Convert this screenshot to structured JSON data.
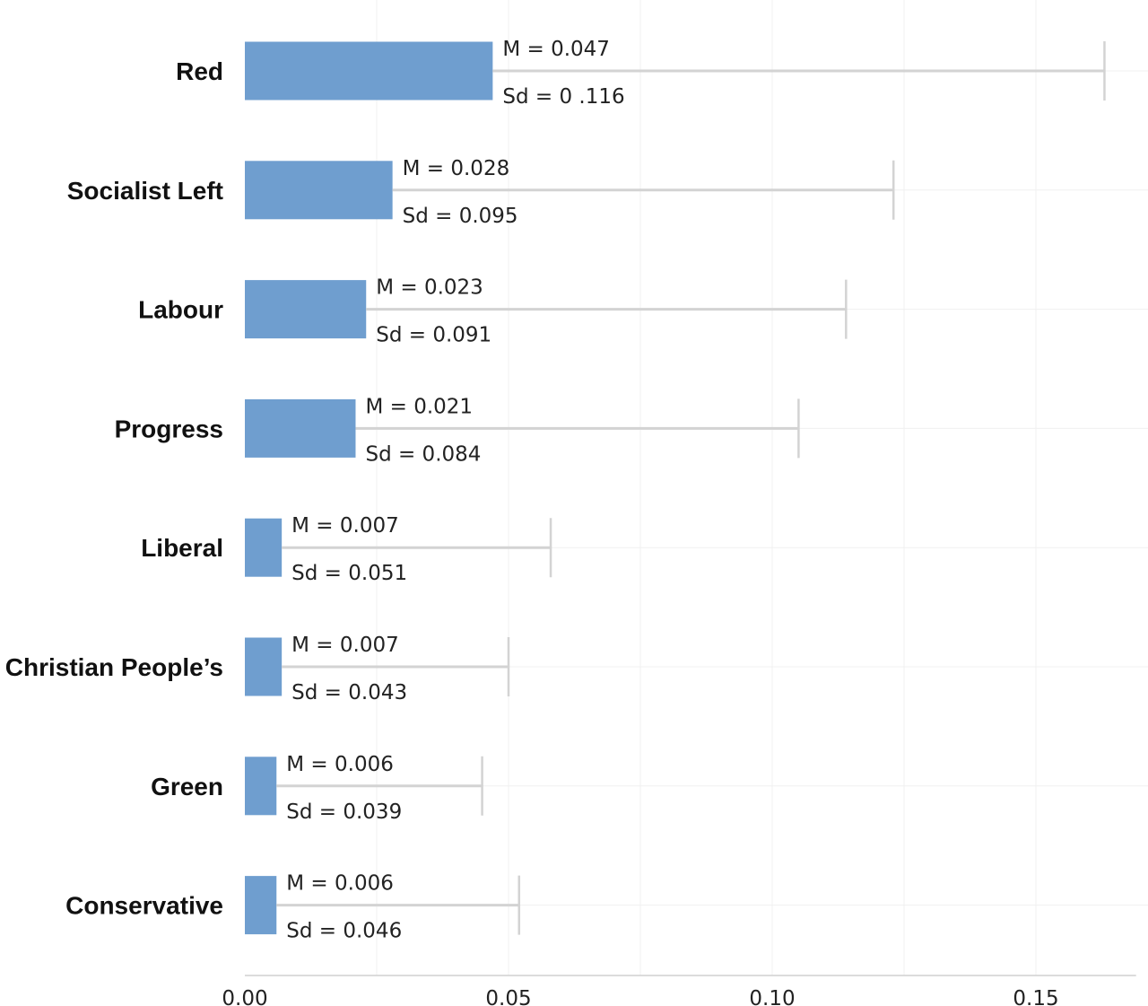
{
  "chart_data": {
    "type": "bar",
    "orientation": "horizontal",
    "categories": [
      "Red",
      "Socialist Left",
      "Labour",
      "Progress",
      "Liberal",
      "Christian People’s",
      "Green",
      "Conservative"
    ],
    "series": [
      {
        "values": [
          0.047,
          0.028,
          0.023,
          0.021,
          0.007,
          0.007,
          0.006,
          0.006
        ],
        "error_sd": [
          0.116,
          0.095,
          0.091,
          0.084,
          0.051,
          0.043,
          0.039,
          0.046
        ]
      }
    ],
    "mean_labels": [
      "M = 0.047",
      "M = 0.028",
      "M = 0.023",
      "M = 0.021",
      "M = 0.007",
      "M = 0.007",
      "M = 0.006",
      "M = 0.006"
    ],
    "sd_labels": [
      "Sd =  0 .116",
      "Sd = 0.095",
      "Sd = 0.091",
      "Sd = 0.084",
      "Sd = 0.051",
      "Sd = 0.043",
      "Sd = 0.039",
      "Sd = 0.046"
    ],
    "x_ticks": [
      0,
      0.05,
      0.1,
      0.15
    ],
    "x_tick_labels": [
      "0.00",
      "0.05",
      "0.10",
      "0.15"
    ],
    "xlim": [
      0,
      0.169
    ],
    "grid": true,
    "title": "",
    "xlabel": "",
    "ylabel": "",
    "colors": {
      "bar": "#6f9ecf",
      "error_bar": "#d3d3d3",
      "grid": "#f0f0f0",
      "axis": "#d0d0d0"
    }
  }
}
